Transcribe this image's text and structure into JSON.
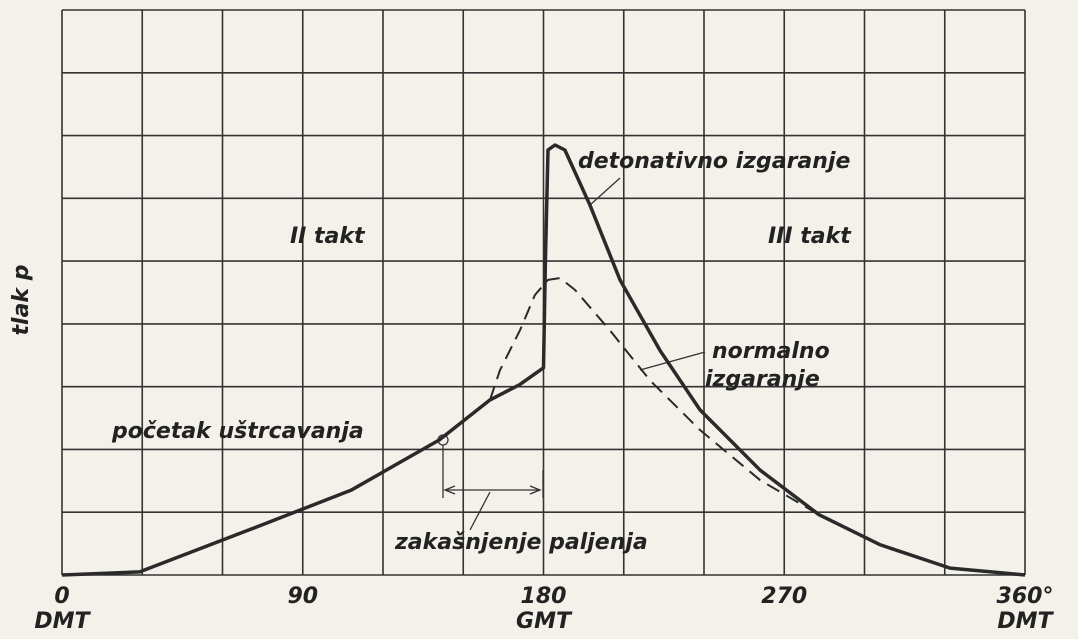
{
  "chart_data": {
    "type": "line",
    "ylabel": "tlak p",
    "xlim": [
      0,
      360
    ],
    "ylim": [
      0,
      9
    ],
    "xticks": [
      0,
      90,
      180,
      270,
      {
        "value": 360,
        "label": "360°"
      }
    ],
    "xtick_sublabels": [
      "DMT",
      null,
      "GMT",
      null,
      "DMT"
    ],
    "xgrid": [
      0,
      30,
      60,
      90,
      120,
      150,
      180,
      210,
      240,
      270,
      300,
      330,
      360
    ],
    "yticks": [
      0,
      1,
      2,
      3,
      4,
      5,
      6,
      7,
      8,
      9
    ],
    "grid": true,
    "series": [
      {
        "name": "detonativno izgaranje",
        "color": "#2a2a2a",
        "dash": false,
        "x": [
          0,
          29,
          70,
          108,
          141,
          160,
          171,
          180,
          180.7,
          181.7,
          184.3,
          188,
          197.4,
          208.6,
          223.5,
          238.5,
          261,
          283,
          306,
          332,
          360
        ],
        "values": [
          0,
          0.05,
          0.72,
          1.35,
          2.15,
          2.79,
          3.03,
          3.3,
          5.0,
          6.77,
          6.85,
          6.77,
          5.89,
          4.7,
          3.58,
          2.63,
          1.67,
          0.96,
          0.48,
          0.11,
          0
        ]
      },
      {
        "name": "normalno izgaranje",
        "color": "#2a2a2a",
        "dash": true,
        "x": [
          160,
          163.7,
          171.2,
          176.8,
          181.7,
          186.2,
          191.8,
          204.8,
          219.8,
          238.5,
          261,
          283
        ],
        "values": [
          2.79,
          3.26,
          3.9,
          4.46,
          4.7,
          4.73,
          4.54,
          3.9,
          3.1,
          2.31,
          1.51,
          0.96
        ]
      }
    ],
    "annotations": [
      "II takt",
      "III takt",
      "detonativno izgaranje",
      "normalno",
      "izgaranje",
      "početak uštrcavanja",
      "zakašnjenje paljenja"
    ]
  }
}
